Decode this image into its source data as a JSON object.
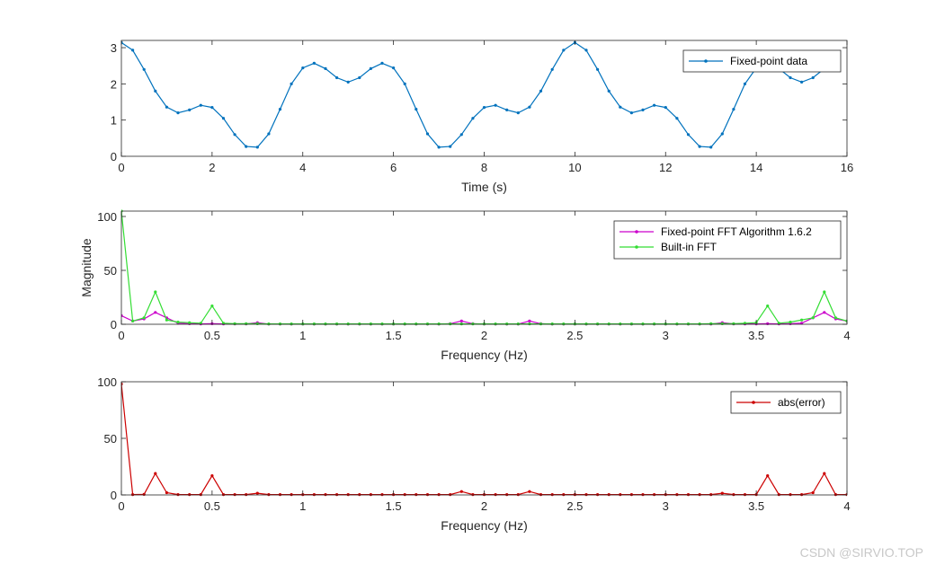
{
  "watermark": "CSDN @SIRVIO.TOP",
  "chart_data": [
    {
      "type": "line",
      "xlabel": "Time (s)",
      "ylabel": "",
      "xlim": [
        0,
        16
      ],
      "ylim": [
        0,
        3.2
      ],
      "xticks": [
        0,
        2,
        4,
        6,
        8,
        10,
        12,
        14,
        16
      ],
      "yticks": [
        0,
        1,
        2,
        3
      ],
      "legend_position": "top-right",
      "series": [
        {
          "name": "Fixed-point data",
          "color": "#0072BD",
          "x": [
            0,
            0.25,
            0.5,
            0.75,
            1,
            1.25,
            1.5,
            1.75,
            2,
            2.25,
            2.5,
            2.75,
            3,
            3.25,
            3.5,
            3.75,
            4,
            4.25,
            4.5,
            4.75,
            5,
            5.25,
            5.5,
            5.75,
            6,
            6.25,
            6.5,
            6.75,
            7,
            7.25,
            7.5,
            7.75,
            8,
            8.25,
            8.5,
            8.75,
            9,
            9.25,
            9.5,
            9.75,
            10,
            10.25,
            10.5,
            10.75,
            11,
            11.25,
            11.5,
            11.75,
            12,
            12.25,
            12.5,
            12.75,
            13,
            13.25,
            13.5,
            13.75,
            14,
            14.25,
            14.5,
            14.75,
            15,
            15.25,
            15.5,
            15.75
          ],
          "y": [
            3.14,
            2.93,
            2.4,
            1.8,
            1.36,
            1.2,
            1.28,
            1.41,
            1.35,
            1.05,
            0.6,
            0.27,
            0.25,
            0.62,
            1.3,
            2.0,
            2.44,
            2.57,
            2.42,
            2.17,
            2.05,
            2.17,
            2.42,
            2.57,
            2.44,
            2.0,
            1.3,
            0.62,
            0.25,
            0.27,
            0.6,
            1.05,
            1.35,
            1.41,
            1.28,
            1.2,
            1.36,
            1.8,
            2.4,
            2.93,
            3.14,
            2.93,
            2.4,
            1.8,
            1.36,
            1.2,
            1.28,
            1.41,
            1.35,
            1.05,
            0.6,
            0.27,
            0.25,
            0.62,
            1.3,
            2.0,
            2.44,
            2.57,
            2.42,
            2.17,
            2.05,
            2.17,
            2.42,
            2.57
          ]
        }
      ]
    },
    {
      "type": "line",
      "xlabel": "Frequency (Hz)",
      "ylabel": "Magnitude",
      "xlim": [
        0,
        4
      ],
      "ylim": [
        0,
        105
      ],
      "xticks": [
        0,
        0.5,
        1,
        1.5,
        2,
        2.5,
        3,
        3.5,
        4
      ],
      "yticks": [
        0,
        50,
        100
      ],
      "legend_position": "top-right",
      "series": [
        {
          "name": "Fixed-point FFT Algorithm 1.6.2",
          "color": "#CC00CC",
          "x": [
            0,
            0.0625,
            0.125,
            0.1875,
            0.25,
            0.3125,
            0.375,
            0.4375,
            0.5,
            0.5625,
            0.625,
            0.6875,
            0.75,
            0.8125,
            0.875,
            0.9375,
            1,
            1.0625,
            1.125,
            1.1875,
            1.25,
            1.3125,
            1.375,
            1.4375,
            1.5,
            1.5625,
            1.625,
            1.6875,
            1.75,
            1.8125,
            1.875,
            1.9375,
            2,
            2.0625,
            2.125,
            2.1875,
            2.25,
            2.3125,
            2.375,
            2.4375,
            2.5,
            2.5625,
            2.625,
            2.6875,
            2.75,
            2.8125,
            2.875,
            2.9375,
            3,
            3.0625,
            3.125,
            3.1875,
            3.25,
            3.3125,
            3.375,
            3.4375,
            3.5,
            3.5625,
            3.625,
            3.6875,
            3.75,
            3.8125,
            3.875,
            3.9375,
            4
          ],
          "y": [
            8,
            3,
            5,
            11,
            6,
            1,
            0.5,
            0.3,
            0.5,
            0.3,
            0.3,
            0.3,
            1.5,
            0.2,
            0.2,
            0.2,
            0.2,
            0.2,
            0.2,
            0.2,
            0.2,
            0.2,
            0.2,
            0.2,
            0.2,
            0.2,
            0.2,
            0.2,
            0.2,
            0.5,
            3,
            0.5,
            0.2,
            0.2,
            0.2,
            0.2,
            3,
            0.5,
            0.2,
            0.2,
            0.2,
            0.2,
            0.2,
            0.2,
            0.2,
            0.2,
            0.2,
            0.2,
            0.2,
            0.2,
            0.2,
            0.2,
            0.2,
            1.5,
            0.3,
            0.3,
            0.3,
            0.5,
            0.3,
            0.5,
            1,
            6,
            11,
            5,
            3
          ]
        },
        {
          "name": "Built-in FFT",
          "color": "#33DD33",
          "x": [
            0,
            0.0625,
            0.125,
            0.1875,
            0.25,
            0.3125,
            0.375,
            0.4375,
            0.5,
            0.5625,
            0.625,
            0.6875,
            0.75,
            0.8125,
            0.875,
            0.9375,
            1,
            1.0625,
            1.125,
            1.1875,
            1.25,
            1.3125,
            1.375,
            1.4375,
            1.5,
            1.5625,
            1.625,
            1.6875,
            1.75,
            1.8125,
            1.875,
            1.9375,
            2,
            2.0625,
            2.125,
            2.1875,
            2.25,
            2.3125,
            2.375,
            2.4375,
            2.5,
            2.5625,
            2.625,
            2.6875,
            2.75,
            2.8125,
            2.875,
            2.9375,
            3,
            3.0625,
            3.125,
            3.1875,
            3.25,
            3.3125,
            3.375,
            3.4375,
            3.5,
            3.5625,
            3.625,
            3.6875,
            3.75,
            3.8125,
            3.875,
            3.9375,
            4
          ],
          "y": [
            105,
            3,
            6,
            30,
            4,
            2,
            1.5,
            1,
            17,
            1,
            0.5,
            0.5,
            0.5,
            0.3,
            0.3,
            0.3,
            0.3,
            0.3,
            0.3,
            0.3,
            0.3,
            0.3,
            0.3,
            0.3,
            0.3,
            0.3,
            0.3,
            0.3,
            0.3,
            0.3,
            0.3,
            0.3,
            0.3,
            0.3,
            0.3,
            0.3,
            0.3,
            0.3,
            0.3,
            0.3,
            0.3,
            0.3,
            0.3,
            0.3,
            0.3,
            0.3,
            0.3,
            0.3,
            0.3,
            0.3,
            0.3,
            0.3,
            0.5,
            0.5,
            0.5,
            1,
            1.5,
            17,
            1,
            2,
            4,
            6,
            30,
            6,
            3
          ]
        }
      ]
    },
    {
      "type": "line",
      "xlabel": "Frequency (Hz)",
      "ylabel": "",
      "xlim": [
        0,
        4
      ],
      "ylim": [
        0,
        100
      ],
      "xticks": [
        0,
        0.5,
        1,
        1.5,
        2,
        2.5,
        3,
        3.5,
        4
      ],
      "yticks": [
        0,
        50,
        100
      ],
      "legend_position": "top-right",
      "series": [
        {
          "name": "abs(error)",
          "color": "#CC0000",
          "x": [
            0,
            0.0625,
            0.125,
            0.1875,
            0.25,
            0.3125,
            0.375,
            0.4375,
            0.5,
            0.5625,
            0.625,
            0.6875,
            0.75,
            0.8125,
            0.875,
            0.9375,
            1,
            1.0625,
            1.125,
            1.1875,
            1.25,
            1.3125,
            1.375,
            1.4375,
            1.5,
            1.5625,
            1.625,
            1.6875,
            1.75,
            1.8125,
            1.875,
            1.9375,
            2,
            2.0625,
            2.125,
            2.1875,
            2.25,
            2.3125,
            2.375,
            2.4375,
            2.5,
            2.5625,
            2.625,
            2.6875,
            2.75,
            2.8125,
            2.875,
            2.9375,
            3,
            3.0625,
            3.125,
            3.1875,
            3.25,
            3.3125,
            3.375,
            3.4375,
            3.5,
            3.5625,
            3.625,
            3.6875,
            3.75,
            3.8125,
            3.875,
            3.9375,
            4
          ],
          "y": [
            98,
            0.3,
            0.5,
            19,
            2,
            0.3,
            0.3,
            0.3,
            17,
            0.3,
            0.3,
            0.3,
            1.5,
            0.3,
            0.3,
            0.3,
            0.3,
            0.3,
            0.3,
            0.3,
            0.3,
            0.3,
            0.3,
            0.3,
            0.3,
            0.3,
            0.3,
            0.3,
            0.3,
            0.3,
            3,
            0.3,
            0.3,
            0.3,
            0.3,
            0.3,
            3,
            0.3,
            0.3,
            0.3,
            0.3,
            0.3,
            0.3,
            0.3,
            0.3,
            0.3,
            0.3,
            0.3,
            0.3,
            0.3,
            0.3,
            0.3,
            0.3,
            1.5,
            0.3,
            0.3,
            0.3,
            17,
            0.3,
            0.3,
            0.3,
            2,
            19,
            0.3,
            0.3
          ]
        }
      ]
    }
  ]
}
